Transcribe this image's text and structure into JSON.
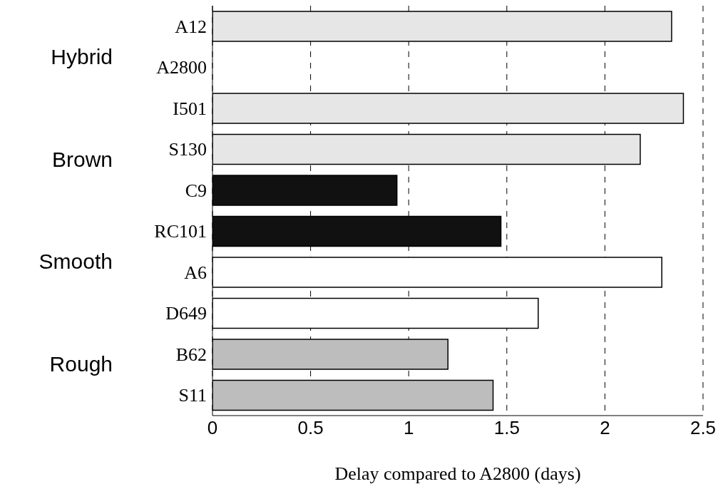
{
  "chart_data": {
    "type": "bar",
    "orientation": "horizontal",
    "xlabel": "Delay compared to A2800 (days)",
    "categories": [
      "A12",
      "A2800",
      "I501",
      "S130",
      "C9",
      "RC101",
      "A6",
      "D649",
      "B62",
      "S11"
    ],
    "values": [
      2.34,
      0,
      2.4,
      2.18,
      0.94,
      1.47,
      2.29,
      1.66,
      1.2,
      1.43
    ],
    "colors": [
      "#e6e6e6",
      "#e6e6e6",
      "#e6e6e6",
      "#e6e6e6",
      "#111111",
      "#111111",
      "#ffffff",
      "#ffffff",
      "#bdbdbd",
      "#bdbdbd"
    ],
    "xlim": [
      0,
      2.5
    ],
    "xticks": [
      0,
      0.5,
      1,
      1.5,
      2,
      2.5
    ],
    "grid": "x",
    "annotations": [
      "Hybrid",
      "Brown",
      "Smooth",
      "Rough"
    ]
  }
}
